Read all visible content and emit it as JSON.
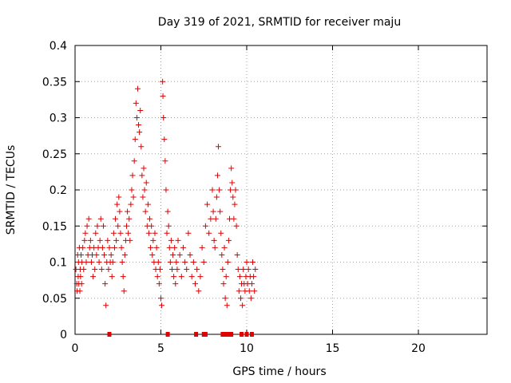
{
  "chart_data": {
    "type": "scatter",
    "title": "Day 319 of 2021, SRMTID for receiver maju",
    "xlabel": "GPS time / hours",
    "ylabel": "SRMTID / TECUs",
    "xlim": [
      0,
      24
    ],
    "ylim": [
      0,
      0.4
    ],
    "xticks": [
      0,
      5,
      10,
      15,
      20
    ],
    "xtick_labels": [
      "0",
      "5",
      "10",
      "15",
      "20"
    ],
    "yticks": [
      0,
      0.05,
      0.1,
      0.15,
      0.2,
      0.25,
      0.3,
      0.35,
      0.4
    ],
    "ytick_labels": [
      "0",
      "0.05",
      "0.1",
      "0.15",
      "0.2",
      "0.25",
      "0.3",
      "0.35",
      "0.4"
    ],
    "grid": true,
    "marker": "plus",
    "color": "#e00000",
    "series": [
      {
        "name": "SRMTID",
        "points": [
          [
            0.05,
            0.09
          ],
          [
            0.1,
            0.07
          ],
          [
            0.12,
            0.06
          ],
          [
            0.15,
            0.11
          ],
          [
            0.18,
            0.08
          ],
          [
            0.2,
            0.1
          ],
          [
            0.22,
            0.07
          ],
          [
            0.25,
            0.12
          ],
          [
            0.28,
            0.06
          ],
          [
            0.3,
            0.09
          ],
          [
            0.32,
            0.08
          ],
          [
            0.35,
            0.11
          ],
          [
            0.38,
            0.07
          ],
          [
            0.4,
            0.1
          ],
          [
            0.45,
            0.12
          ],
          [
            0.5,
            0.09
          ],
          [
            0.55,
            0.13
          ],
          [
            0.6,
            0.14
          ],
          [
            0.65,
            0.1
          ],
          [
            0.7,
            0.15
          ],
          [
            0.75,
            0.11
          ],
          [
            0.8,
            0.16
          ],
          [
            0.85,
            0.12
          ],
          [
            0.9,
            0.13
          ],
          [
            0.95,
            0.1
          ],
          [
            1.0,
            0.11
          ],
          [
            1.05,
            0.08
          ],
          [
            1.1,
            0.12
          ],
          [
            1.15,
            0.09
          ],
          [
            1.2,
            0.14
          ],
          [
            1.25,
            0.11
          ],
          [
            1.3,
            0.15
          ],
          [
            1.35,
            0.12
          ],
          [
            1.4,
            0.1
          ],
          [
            1.45,
            0.13
          ],
          [
            1.5,
            0.16
          ],
          [
            1.55,
            0.09
          ],
          [
            1.6,
            0.12
          ],
          [
            1.65,
            0.15
          ],
          [
            1.7,
            0.11
          ],
          [
            1.75,
            0.07
          ],
          [
            1.8,
            0.04
          ],
          [
            1.85,
            0.1
          ],
          [
            1.9,
            0.13
          ],
          [
            1.95,
            0.09
          ],
          [
            2.0,
            0.12
          ],
          [
            2.05,
            0.1
          ],
          [
            2.1,
            0.11
          ],
          [
            2.15,
            0.08
          ],
          [
            2.2,
            0.1
          ],
          [
            2.25,
            0.14
          ],
          [
            2.3,
            0.12
          ],
          [
            2.35,
            0.16
          ],
          [
            2.4,
            0.13
          ],
          [
            2.45,
            0.18
          ],
          [
            2.5,
            0.15
          ],
          [
            2.55,
            0.19
          ],
          [
            2.6,
            0.17
          ],
          [
            2.65,
            0.14
          ],
          [
            2.7,
            0.12
          ],
          [
            2.75,
            0.1
          ],
          [
            2.8,
            0.08
          ],
          [
            2.85,
            0.06
          ],
          [
            2.9,
            0.11
          ],
          [
            2.95,
            0.13
          ],
          [
            3.0,
            0.15
          ],
          [
            3.05,
            0.17
          ],
          [
            3.1,
            0.14
          ],
          [
            3.15,
            0.16
          ],
          [
            3.2,
            0.13
          ],
          [
            3.25,
            0.18
          ],
          [
            3.3,
            0.2
          ],
          [
            3.35,
            0.22
          ],
          [
            3.4,
            0.19
          ],
          [
            3.45,
            0.24
          ],
          [
            3.5,
            0.27
          ],
          [
            3.55,
            0.32
          ],
          [
            3.6,
            0.3
          ],
          [
            3.65,
            0.34
          ],
          [
            3.7,
            0.29
          ],
          [
            3.75,
            0.28
          ],
          [
            3.8,
            0.31
          ],
          [
            3.85,
            0.26
          ],
          [
            3.9,
            0.22
          ],
          [
            3.95,
            0.19
          ],
          [
            4.0,
            0.23
          ],
          [
            4.05,
            0.2
          ],
          [
            4.1,
            0.17
          ],
          [
            4.15,
            0.21
          ],
          [
            4.2,
            0.15
          ],
          [
            4.25,
            0.18
          ],
          [
            4.3,
            0.14
          ],
          [
            4.35,
            0.16
          ],
          [
            4.4,
            0.12
          ],
          [
            4.45,
            0.15
          ],
          [
            4.5,
            0.11
          ],
          [
            4.55,
            0.13
          ],
          [
            4.6,
            0.1
          ],
          [
            4.65,
            0.14
          ],
          [
            4.7,
            0.09
          ],
          [
            4.75,
            0.12
          ],
          [
            4.8,
            0.08
          ],
          [
            4.85,
            0.1
          ],
          [
            4.9,
            0.07
          ],
          [
            4.95,
            0.09
          ],
          [
            5.0,
            0.05
          ],
          [
            5.05,
            0.04
          ],
          [
            5.1,
            0.35
          ],
          [
            5.12,
            0.33
          ],
          [
            5.15,
            0.3
          ],
          [
            5.2,
            0.27
          ],
          [
            5.25,
            0.24
          ],
          [
            5.3,
            0.2
          ],
          [
            5.35,
            0.14
          ],
          [
            5.4,
            0.17
          ],
          [
            5.45,
            0.15
          ],
          [
            5.5,
            0.12
          ],
          [
            5.55,
            0.1
          ],
          [
            5.6,
            0.13
          ],
          [
            5.65,
            0.09
          ],
          [
            5.7,
            0.11
          ],
          [
            5.75,
            0.08
          ],
          [
            5.8,
            0.12
          ],
          [
            5.85,
            0.07
          ],
          [
            5.9,
            0.1
          ],
          [
            5.95,
            0.09
          ],
          [
            6.0,
            0.13
          ],
          [
            6.1,
            0.11
          ],
          [
            6.2,
            0.08
          ],
          [
            6.3,
            0.12
          ],
          [
            6.4,
            0.1
          ],
          [
            6.5,
            0.09
          ],
          [
            6.6,
            0.14
          ],
          [
            6.7,
            0.11
          ],
          [
            6.8,
            0.08
          ],
          [
            6.9,
            0.1
          ],
          [
            7.0,
            0.07
          ],
          [
            7.1,
            0.09
          ],
          [
            7.2,
            0.06
          ],
          [
            7.3,
            0.08
          ],
          [
            7.4,
            0.12
          ],
          [
            7.5,
            0.1
          ],
          [
            7.6,
            0.15
          ],
          [
            7.7,
            0.18
          ],
          [
            7.8,
            0.14
          ],
          [
            7.9,
            0.16
          ],
          [
            8.0,
            0.2
          ],
          [
            8.05,
            0.17
          ],
          [
            8.1,
            0.13
          ],
          [
            8.15,
            0.12
          ],
          [
            8.2,
            0.16
          ],
          [
            8.25,
            0.19
          ],
          [
            8.3,
            0.22
          ],
          [
            8.35,
            0.26
          ],
          [
            8.4,
            0.2
          ],
          [
            8.45,
            0.17
          ],
          [
            8.5,
            0.14
          ],
          [
            8.55,
            0.11
          ],
          [
            8.6,
            0.09
          ],
          [
            8.65,
            0.07
          ],
          [
            8.7,
            0.12
          ],
          [
            8.75,
            0.05
          ],
          [
            8.8,
            0.08
          ],
          [
            8.85,
            0.04
          ],
          [
            8.9,
            0.1
          ],
          [
            8.95,
            0.13
          ],
          [
            9.0,
            0.16
          ],
          [
            9.05,
            0.2
          ],
          [
            9.1,
            0.23
          ],
          [
            9.15,
            0.21
          ],
          [
            9.2,
            0.19
          ],
          [
            9.25,
            0.16
          ],
          [
            9.3,
            0.18
          ],
          [
            9.35,
            0.2
          ],
          [
            9.4,
            0.15
          ],
          [
            9.45,
            0.11
          ],
          [
            9.5,
            0.09
          ],
          [
            9.55,
            0.06
          ],
          [
            9.6,
            0.08
          ],
          [
            9.65,
            0.05
          ],
          [
            9.7,
            0.07
          ],
          [
            9.75,
            0.04
          ],
          [
            9.8,
            0.09
          ],
          [
            9.85,
            0.07
          ],
          [
            9.9,
            0.06
          ],
          [
            9.95,
            0.08
          ],
          [
            10.0,
            0.1
          ],
          [
            10.05,
            0.07
          ],
          [
            10.1,
            0.09
          ],
          [
            10.15,
            0.06
          ],
          [
            10.2,
            0.08
          ],
          [
            10.25,
            0.05
          ],
          [
            10.3,
            0.07
          ],
          [
            10.35,
            0.1
          ],
          [
            10.4,
            0.08
          ],
          [
            10.45,
            0.06
          ],
          [
            10.5,
            0.09
          ]
        ]
      }
    ],
    "zero_markers_x": [
      2.0,
      5.4,
      7.05,
      7.5,
      7.6,
      8.6,
      8.8,
      9.0,
      9.1,
      9.7,
      10.0,
      10.3
    ]
  }
}
